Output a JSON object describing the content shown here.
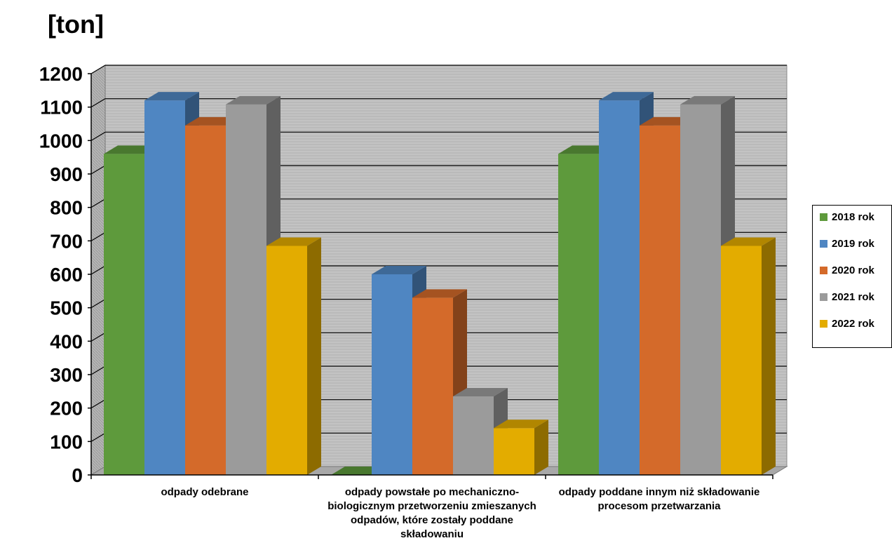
{
  "chart_data": {
    "type": "bar",
    "ylabel": "[ton]",
    "ylim": [
      0,
      1200
    ],
    "yticks": [
      "0",
      "100",
      "200",
      "300",
      "400",
      "500",
      "600",
      "700",
      "800",
      "900",
      "1000",
      "1100",
      "1200"
    ],
    "categories": [
      "odpady odebrane",
      "odpady powstałe po mechaniczno-biologicznym przetworzeniu zmieszanych odpadów, które zostały poddane składowaniu",
      "odpady poddane innym niż składowanie procesom przetwarzania"
    ],
    "series": [
      {
        "name": "2018 rok",
        "color": "#5e9a3c",
        "values": [
          960,
          0,
          960
        ]
      },
      {
        "name": "2019 rok",
        "color": "#4f86c2",
        "values": [
          1120,
          600,
          1120
        ]
      },
      {
        "name": "2020 rok",
        "color": "#d46a2a",
        "values": [
          1045,
          530,
          1045
        ]
      },
      {
        "name": "2021 rok",
        "color": "#9b9b9b",
        "values": [
          1108,
          235,
          1108
        ]
      },
      {
        "name": "2022 rok",
        "color": "#e3ac00",
        "values": [
          685,
          140,
          685
        ]
      }
    ],
    "legend_position": "right",
    "grid": true,
    "style": "3d-clustered-columns"
  }
}
